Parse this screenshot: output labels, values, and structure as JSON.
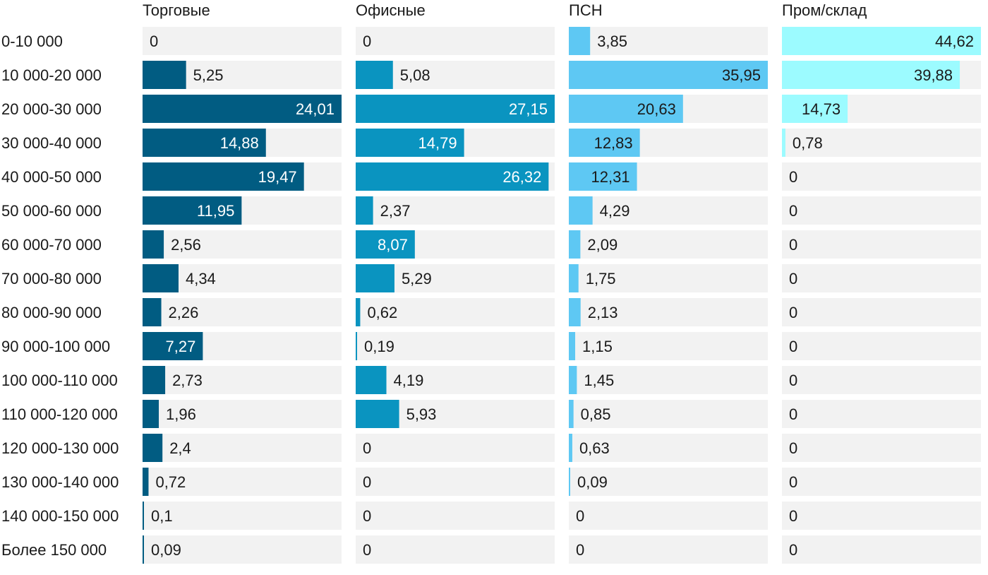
{
  "chart_data": {
    "type": "bar",
    "orientation": "horizontal",
    "layout": "small-multiples",
    "categories": [
      "0-10 000",
      "10 000-20 000",
      "20 000-30 000",
      "30 000-40 000",
      "40 000-50 000",
      "50 000-60 000",
      "60 000-70 000",
      "70 000-80 000",
      "80 000-90 000",
      "90 000-100 000",
      "100 000-110 000",
      "110 000-120 000",
      "120 000-130 000",
      "130 000-140 000",
      "140 000-150 000",
      "Более 150 000"
    ],
    "series": [
      {
        "name": "Торговые",
        "color": "#015c82",
        "values": [
          0,
          5.25,
          24.01,
          14.88,
          19.47,
          11.95,
          2.56,
          4.34,
          2.26,
          7.27,
          2.73,
          1.96,
          2.4,
          0.72,
          0.1,
          0.09
        ],
        "labels": [
          "0",
          "5,25",
          "24,01",
          "14,88",
          "19,47",
          "11,95",
          "2,56",
          "4,34",
          "2,26",
          "7,27",
          "2,73",
          "1,96",
          "2,4",
          "0,72",
          "0,1",
          "0,09"
        ],
        "max": 24.01
      },
      {
        "name": "Офисные",
        "color": "#0a94c0",
        "values": [
          0,
          5.08,
          27.15,
          14.79,
          26.32,
          2.37,
          8.07,
          5.29,
          0.62,
          0.19,
          4.19,
          5.93,
          0,
          0,
          0,
          0
        ],
        "labels": [
          "0",
          "5,08",
          "27,15",
          "14,79",
          "26,32",
          "2,37",
          "8,07",
          "5,29",
          "0,62",
          "0,19",
          "4,19",
          "5,93",
          "0",
          "0",
          "0",
          "0"
        ],
        "max": 27.15
      },
      {
        "name": "ПСН",
        "color": "#5ec8f3",
        "values": [
          3.85,
          35.95,
          20.63,
          12.83,
          12.31,
          4.29,
          2.09,
          1.75,
          2.13,
          1.15,
          1.45,
          0.85,
          0.63,
          0.09,
          0,
          0
        ],
        "labels": [
          "3,85",
          "35,95",
          "20,63",
          "12,83",
          "12,31",
          "4,29",
          "2,09",
          "1,75",
          "2,13",
          "1,15",
          "1,45",
          "0,85",
          "0,63",
          "0,09",
          "0",
          "0"
        ],
        "max": 35.95
      },
      {
        "name": "Пром/склад",
        "color": "#9cfbff",
        "values": [
          44.62,
          39.88,
          14.73,
          0.78,
          0,
          0,
          0,
          0,
          0,
          0,
          0,
          0,
          0,
          0,
          0,
          0
        ],
        "labels": [
          "44,62",
          "39,88",
          "14,73",
          "0,78",
          "0",
          "0",
          "0",
          "0",
          "0",
          "0",
          "0",
          "0",
          "0",
          "0",
          "0",
          "0"
        ],
        "max": 44.62
      }
    ],
    "background_bar_color": "#f2f2f2",
    "grid": false,
    "legend": "none"
  }
}
